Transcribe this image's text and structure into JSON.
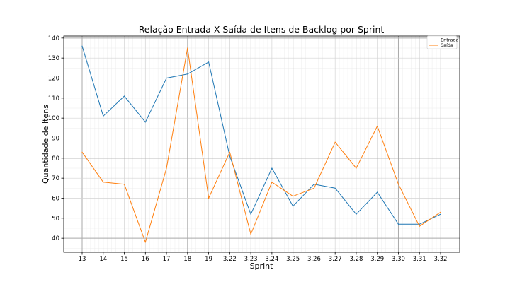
{
  "chart_data": {
    "type": "line",
    "title": "Relação Entrada X Saída de Itens de Backlog por Sprint",
    "xlabel": "Sprint",
    "ylabel": "Quantidade de Itens",
    "categories": [
      "13",
      "14",
      "15",
      "16",
      "17",
      "18",
      "19",
      "3.22",
      "3.23",
      "3.24",
      "3.25",
      "3.26",
      "3.27",
      "3.28",
      "3.29",
      "3.30",
      "3.31",
      "3.32"
    ],
    "yticks": [
      "40",
      "50",
      "60",
      "70",
      "80",
      "90",
      "100",
      "110",
      "120",
      "130",
      "140"
    ],
    "ylim": [
      33,
      141
    ],
    "grid": true,
    "legend_position": "top-right",
    "series": [
      {
        "name": "Entrada",
        "color": "#1f77b4",
        "values": [
          136,
          101,
          111,
          98,
          120,
          122,
          128,
          81,
          52,
          75,
          56,
          67,
          65,
          52,
          63,
          47,
          47,
          52
        ]
      },
      {
        "name": "Saída",
        "color": "#ff7f0e",
        "values": [
          83,
          68,
          67,
          38,
          75,
          135,
          60,
          83,
          42,
          68,
          61,
          65,
          88,
          75,
          96,
          67,
          46,
          53
        ]
      }
    ]
  }
}
